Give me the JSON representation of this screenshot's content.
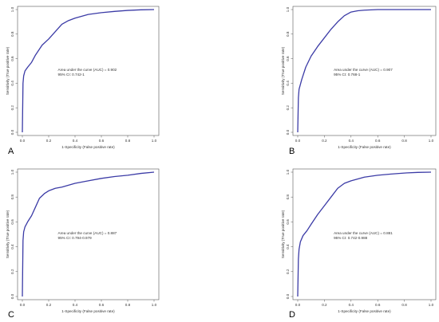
{
  "chart_data": [
    {
      "type": "line",
      "panel_label": "A",
      "xlabel": "1-Specificity (False positive rate)",
      "ylabel": "Sensitivity (True positive rate)",
      "xlim": [
        0,
        1
      ],
      "ylim": [
        0,
        1
      ],
      "x_ticks": [
        "0.0",
        "0.2",
        "0.4",
        "0.6",
        "0.8",
        "1.0"
      ],
      "y_ticks": [
        "0.0",
        "0.2",
        "0.4",
        "0.6",
        "0.8",
        "1.0"
      ],
      "annotation_auc": "Area under the curve (AUC) = 0.902",
      "annotation_ci": "95% CI: 0.742-1",
      "line_color": "#3b3ba6",
      "x": [
        0,
        0.005,
        0.01,
        0.02,
        0.04,
        0.07,
        0.1,
        0.15,
        0.2,
        0.25,
        0.3,
        0.35,
        0.4,
        0.5,
        0.6,
        0.7,
        0.8,
        0.9,
        1.0
      ],
      "y": [
        0,
        0.4,
        0.46,
        0.5,
        0.53,
        0.57,
        0.63,
        0.71,
        0.76,
        0.82,
        0.88,
        0.91,
        0.93,
        0.96,
        0.975,
        0.985,
        0.993,
        0.998,
        1.0
      ]
    },
    {
      "type": "line",
      "panel_label": "B",
      "xlabel": "1-Specificity (False positive rate)",
      "ylabel": "Sensitivity (True positive rate)",
      "xlim": [
        0,
        1
      ],
      "ylim": [
        0,
        1
      ],
      "x_ticks": [
        "0.0",
        "0.2",
        "0.4",
        "0.6",
        "0.8",
        "1.0"
      ],
      "y_ticks": [
        "0.0",
        "0.2",
        "0.4",
        "0.6",
        "0.8",
        "1.0"
      ],
      "annotation_auc": "Area under the curve (AUC) = 0.907",
      "annotation_ci": "95% CI: 0.768-1",
      "line_color": "#3b3ba6",
      "x": [
        0,
        0.005,
        0.01,
        0.03,
        0.06,
        0.1,
        0.15,
        0.2,
        0.25,
        0.3,
        0.35,
        0.4,
        0.45,
        0.5,
        0.6,
        0.7,
        0.8,
        1.0
      ],
      "y": [
        0,
        0.28,
        0.35,
        0.43,
        0.53,
        0.62,
        0.7,
        0.77,
        0.84,
        0.9,
        0.95,
        0.98,
        0.99,
        0.995,
        1.0,
        1.0,
        1.0,
        1.0
      ]
    },
    {
      "type": "line",
      "panel_label": "C",
      "xlabel": "1-Specificity (False positive rate)",
      "ylabel": "Sensitivity (True positive rate)",
      "xlim": [
        0,
        1
      ],
      "ylim": [
        0,
        1
      ],
      "x_ticks": [
        "0.0",
        "0.2",
        "0.4",
        "0.6",
        "0.8",
        "1.0"
      ],
      "y_ticks": [
        "0.0",
        "0.2",
        "0.4",
        "0.6",
        "0.8",
        "1.0"
      ],
      "annotation_auc": "Area under the curve (AUC) = 0.887",
      "annotation_ci": "95% CI: 0.794-0.979",
      "line_color": "#3b3ba6",
      "x": [
        0,
        0.005,
        0.01,
        0.02,
        0.04,
        0.07,
        0.1,
        0.13,
        0.17,
        0.2,
        0.25,
        0.3,
        0.4,
        0.5,
        0.6,
        0.7,
        0.8,
        0.9,
        1.0
      ],
      "y": [
        0,
        0.45,
        0.52,
        0.56,
        0.6,
        0.65,
        0.72,
        0.79,
        0.83,
        0.85,
        0.87,
        0.88,
        0.91,
        0.93,
        0.95,
        0.965,
        0.975,
        0.99,
        1.0
      ]
    },
    {
      "type": "line",
      "panel_label": "D",
      "xlabel": "1-Specificity (False positive rate)",
      "ylabel": "Sensitivity (True positive rate)",
      "xlim": [
        0,
        1
      ],
      "ylim": [
        0,
        1
      ],
      "x_ticks": [
        "0.0",
        "0.2",
        "0.4",
        "0.6",
        "0.8",
        "1.0"
      ],
      "y_ticks": [
        "0.0",
        "0.2",
        "0.4",
        "0.6",
        "0.8",
        "1.0"
      ],
      "annotation_auc": "Area under the curve (AUC) = 0.881",
      "annotation_ci": "95% CI: 0.742-0.988",
      "line_color": "#3b3ba6",
      "x": [
        0,
        0.005,
        0.01,
        0.02,
        0.04,
        0.07,
        0.1,
        0.15,
        0.2,
        0.25,
        0.3,
        0.35,
        0.4,
        0.5,
        0.6,
        0.7,
        0.8,
        0.9,
        1.0
      ],
      "y": [
        0,
        0.3,
        0.38,
        0.44,
        0.49,
        0.53,
        0.58,
        0.66,
        0.73,
        0.8,
        0.87,
        0.91,
        0.93,
        0.96,
        0.975,
        0.985,
        0.993,
        0.998,
        1.0
      ]
    }
  ]
}
